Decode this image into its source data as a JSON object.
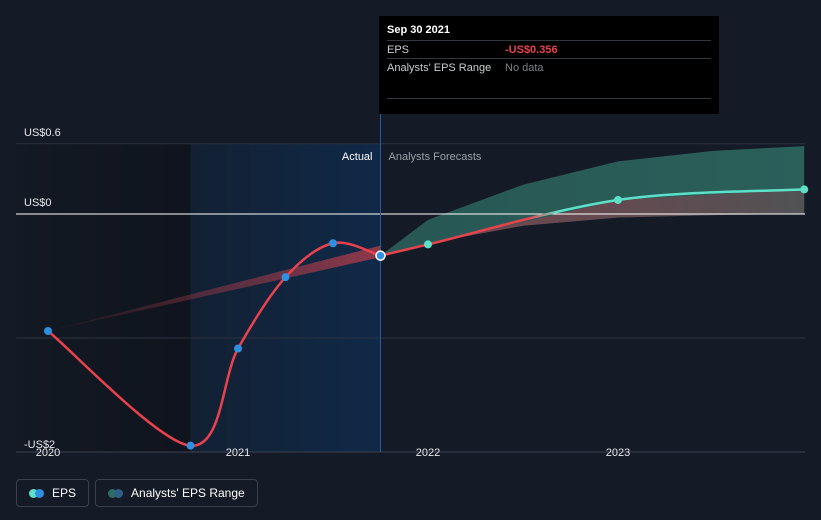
{
  "chart_data": {
    "type": "line",
    "title": "",
    "xlabel": "",
    "ylabel": "",
    "ylim": [
      -2,
      0.6
    ],
    "x_ticks": [
      "2020",
      "2021",
      "2022",
      "2023"
    ],
    "y_labels": {
      "top": "US$0.6",
      "zero": "US$0",
      "bottom": "-US$2"
    },
    "region_labels": {
      "actual": "Actual",
      "forecast": "Analysts Forecasts"
    },
    "series": [
      {
        "name": "EPS",
        "color": "#e9424d",
        "points": [
          {
            "x": 2020.0,
            "y": -1.0
          },
          {
            "x": 2020.75,
            "y": -1.98
          },
          {
            "x": 2021.0,
            "y": -1.15
          },
          {
            "x": 2021.25,
            "y": -0.54
          },
          {
            "x": 2021.5,
            "y": -0.25
          },
          {
            "x": 2021.75,
            "y": -0.356
          }
        ]
      },
      {
        "name": "EPS Forecast",
        "color": "#5de0c8",
        "points": [
          {
            "x": 2021.75,
            "y": -0.356
          },
          {
            "x": 2022.0,
            "y": -0.26
          },
          {
            "x": 2023.0,
            "y": 0.12
          },
          {
            "x": 2023.98,
            "y": 0.21
          }
        ]
      }
    ],
    "ranges": [
      {
        "name": "Analysts' EPS Range (actual)",
        "color": "#9c3a4a",
        "upper": [
          {
            "x": 2020.0,
            "y": -1.0
          },
          {
            "x": 2021.75,
            "y": -0.27
          }
        ],
        "lower": [
          {
            "x": 2020.0,
            "y": -1.0
          },
          {
            "x": 2021.75,
            "y": -0.37
          }
        ]
      },
      {
        "name": "Analysts' EPS Range (forecast)",
        "color": "#2e6b63",
        "upper": [
          {
            "x": 2021.75,
            "y": -0.356
          },
          {
            "x": 2022.0,
            "y": -0.05
          },
          {
            "x": 2022.5,
            "y": 0.25
          },
          {
            "x": 2023.0,
            "y": 0.45
          },
          {
            "x": 2023.5,
            "y": 0.54
          },
          {
            "x": 2023.98,
            "y": 0.58
          }
        ],
        "lower": [
          {
            "x": 2021.75,
            "y": -0.356
          },
          {
            "x": 2022.0,
            "y": -0.25
          },
          {
            "x": 2022.5,
            "y": -0.1
          },
          {
            "x": 2023.0,
            "y": -0.03
          },
          {
            "x": 2023.5,
            "y": -0.01
          },
          {
            "x": 2023.98,
            "y": 0.0
          }
        ]
      }
    ],
    "highlight_x": 2021.75
  },
  "tooltip": {
    "date": "Sep 30 2021",
    "eps_label": "EPS",
    "eps_value": "-US$0.356",
    "range_label": "Analysts' EPS Range",
    "range_value": "No data"
  },
  "legend": [
    {
      "label": "EPS",
      "colors": [
        "#5de0c8",
        "#2f8fe0"
      ]
    },
    {
      "label": "Analysts' EPS Range",
      "colors": [
        "#2e6b63",
        "#2e5f86"
      ]
    }
  ]
}
